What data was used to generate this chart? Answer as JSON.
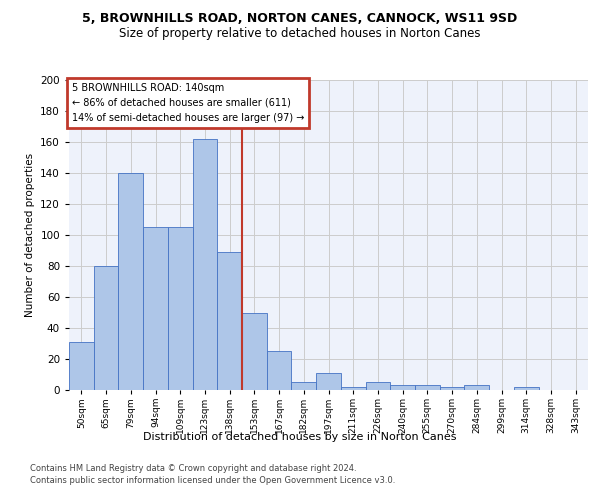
{
  "title1": "5, BROWNHILLS ROAD, NORTON CANES, CANNOCK, WS11 9SD",
  "title2": "Size of property relative to detached houses in Norton Canes",
  "xlabel": "Distribution of detached houses by size in Norton Canes",
  "ylabel": "Number of detached properties",
  "footer1": "Contains HM Land Registry data © Crown copyright and database right 2024.",
  "footer2": "Contains public sector information licensed under the Open Government Licence v3.0.",
  "bar_labels": [
    "50sqm",
    "65sqm",
    "79sqm",
    "94sqm",
    "109sqm",
    "123sqm",
    "138sqm",
    "153sqm",
    "167sqm",
    "182sqm",
    "197sqm",
    "211sqm",
    "226sqm",
    "240sqm",
    "255sqm",
    "270sqm",
    "284sqm",
    "299sqm",
    "314sqm",
    "328sqm",
    "343sqm"
  ],
  "bar_values": [
    31,
    80,
    140,
    105,
    105,
    162,
    89,
    50,
    25,
    5,
    11,
    2,
    5,
    3,
    3,
    2,
    3,
    0,
    2,
    0,
    0
  ],
  "bar_color": "#aec6e8",
  "bar_edge_color": "#4472c4",
  "vline_color": "#c0392b",
  "annotation_title": "5 BROWNHILLS ROAD: 140sqm",
  "annotation_line1": "← 86% of detached houses are smaller (611)",
  "annotation_line2": "14% of semi-detached houses are larger (97) →",
  "annotation_box_color": "#c0392b",
  "plot_bg_color": "#eef2fb",
  "ylim": [
    0,
    200
  ],
  "yticks": [
    0,
    20,
    40,
    60,
    80,
    100,
    120,
    140,
    160,
    180,
    200
  ]
}
